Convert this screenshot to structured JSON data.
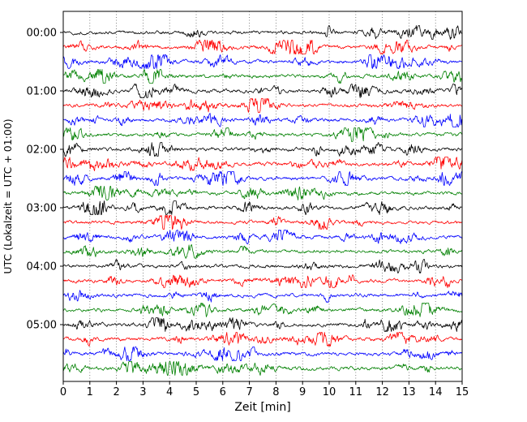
{
  "figure": {
    "background": "#ffffff",
    "border_color": "#000000"
  },
  "chart_data": {
    "type": "line",
    "subtype": "helicorder-seismogram",
    "title": "",
    "xlabel": "Zeit  [min]",
    "ylabel": "UTC (Lokalzeit = UTC + 01:00)",
    "xlim": [
      0,
      15
    ],
    "xtick_labels": [
      "0",
      "1",
      "2",
      "3",
      "4",
      "5",
      "6",
      "7",
      "8",
      "9",
      "10",
      "11",
      "12",
      "13",
      "14",
      "15"
    ],
    "ytick_labels": [
      "00:00",
      "01:00",
      "02:00",
      "03:00",
      "04:00",
      "05:00"
    ],
    "grid": "vertical-dotted",
    "grid_color": "#666666",
    "trace_colors_cycle": [
      "#000000",
      "#ff0000",
      "#0000ff",
      "#008000"
    ],
    "minutes_per_line": 15,
    "traces": [
      {
        "start": "00:00",
        "color": "#000000",
        "seed": 1
      },
      {
        "start": "00:15",
        "color": "#ff0000",
        "seed": 2
      },
      {
        "start": "00:30",
        "color": "#0000ff",
        "seed": 3
      },
      {
        "start": "00:45",
        "color": "#008000",
        "seed": 4
      },
      {
        "start": "01:00",
        "color": "#000000",
        "seed": 5
      },
      {
        "start": "01:15",
        "color": "#ff0000",
        "seed": 6
      },
      {
        "start": "01:30",
        "color": "#0000ff",
        "seed": 7
      },
      {
        "start": "01:45",
        "color": "#008000",
        "seed": 8
      },
      {
        "start": "02:00",
        "color": "#000000",
        "seed": 9
      },
      {
        "start": "02:15",
        "color": "#ff0000",
        "seed": 10
      },
      {
        "start": "02:30",
        "color": "#0000ff",
        "seed": 11
      },
      {
        "start": "02:45",
        "color": "#008000",
        "seed": 12
      },
      {
        "start": "03:00",
        "color": "#000000",
        "seed": 13
      },
      {
        "start": "03:15",
        "color": "#ff0000",
        "seed": 14
      },
      {
        "start": "03:30",
        "color": "#0000ff",
        "seed": 15
      },
      {
        "start": "03:45",
        "color": "#008000",
        "seed": 16
      },
      {
        "start": "04:00",
        "color": "#000000",
        "seed": 17
      },
      {
        "start": "04:15",
        "color": "#ff0000",
        "seed": 18
      },
      {
        "start": "04:30",
        "color": "#0000ff",
        "seed": 19
      },
      {
        "start": "04:45",
        "color": "#008000",
        "seed": 20
      },
      {
        "start": "05:00",
        "color": "#000000",
        "seed": 21
      },
      {
        "start": "05:15",
        "color": "#ff0000",
        "seed": 22
      },
      {
        "start": "05:30",
        "color": "#0000ff",
        "seed": 23
      },
      {
        "start": "05:45",
        "color": "#008000",
        "seed": 24
      }
    ],
    "noise": {
      "points": 740,
      "ar_coeff": 0.72,
      "base_amplitude": 2.6,
      "max_amplitude": 8.5
    }
  }
}
